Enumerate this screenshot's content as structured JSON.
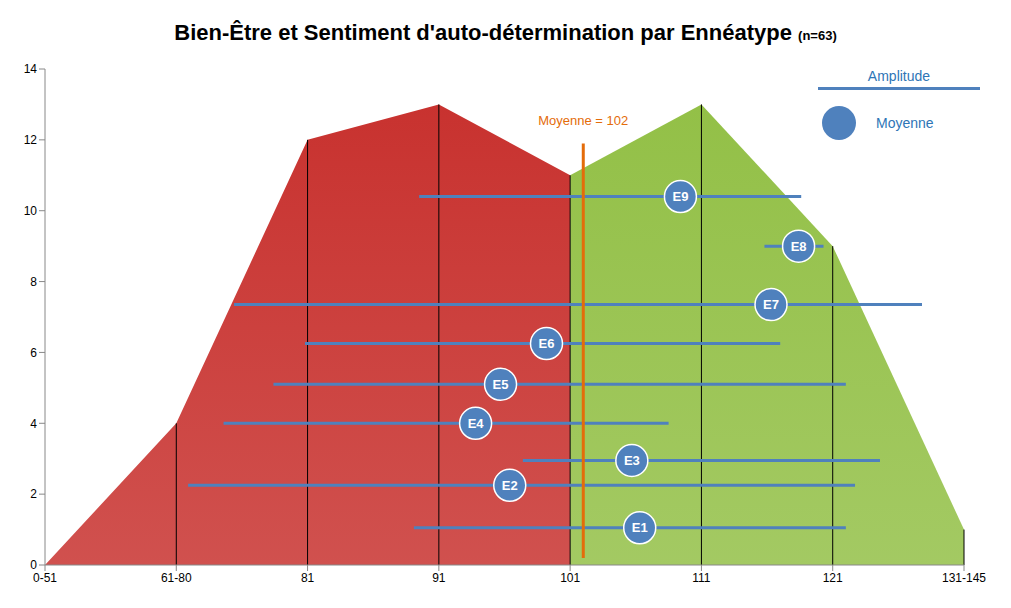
{
  "chart_data": {
    "type": "area",
    "title": "Bien-Être et Sentiment d'auto-détermination par Ennéatype",
    "subtitle": "(n=63)",
    "x": [
      61,
      71,
      81,
      91,
      101,
      111,
      121,
      131
    ],
    "series": [
      {
        "color": "#c8322f",
        "values": [
          0,
          4,
          12,
          13,
          11,
          null,
          null,
          null
        ]
      },
      {
        "color": "#93c047",
        "values": [
          null,
          null,
          null,
          null,
          11,
          13,
          9,
          1
        ]
      }
    ],
    "xlim": [
      61,
      131
    ],
    "xticks": [
      {
        "value": 61,
        "label": "0-51"
      },
      {
        "value": 71,
        "label": "61-80"
      },
      81,
      91,
      101,
      111,
      121,
      {
        "value": 131,
        "label": "131-145"
      }
    ],
    "ylim": [
      0,
      14
    ],
    "yticks": [
      0,
      2,
      4,
      6,
      8,
      10,
      12,
      14
    ],
    "grid": false,
    "mean_line": {
      "value": 102,
      "label": "Moyenne = 102",
      "y_range": [
        0.2,
        11.9
      ]
    },
    "range_legend": "Amplitude",
    "mean_legend": "Moyenne",
    "enneatypes": [
      {
        "label": "E9",
        "min": 89.5,
        "max": 118.6,
        "mean": 109.4,
        "y": 10.4
      },
      {
        "label": "E8",
        "min": 115.8,
        "max": 120.3,
        "mean": 118.4,
        "y": 9.0
      },
      {
        "label": "E7",
        "min": 75.4,
        "max": 127.8,
        "mean": 116.3,
        "y": 7.35
      },
      {
        "label": "E6",
        "min": 80.8,
        "max": 117.0,
        "mean": 99.2,
        "y": 6.25
      },
      {
        "label": "E5",
        "min": 78.4,
        "max": 122.0,
        "mean": 95.7,
        "y": 5.1
      },
      {
        "label": "E4",
        "min": 74.6,
        "max": 108.5,
        "mean": 93.8,
        "y": 4.0
      },
      {
        "label": "E3",
        "min": 97.4,
        "max": 124.6,
        "mean": 105.7,
        "y": 2.95
      },
      {
        "label": "E2",
        "min": 71.9,
        "max": 122.7,
        "mean": 96.4,
        "y": 2.25
      },
      {
        "label": "E1",
        "min": 89.1,
        "max": 122.0,
        "mean": 106.3,
        "y": 1.05
      }
    ]
  }
}
